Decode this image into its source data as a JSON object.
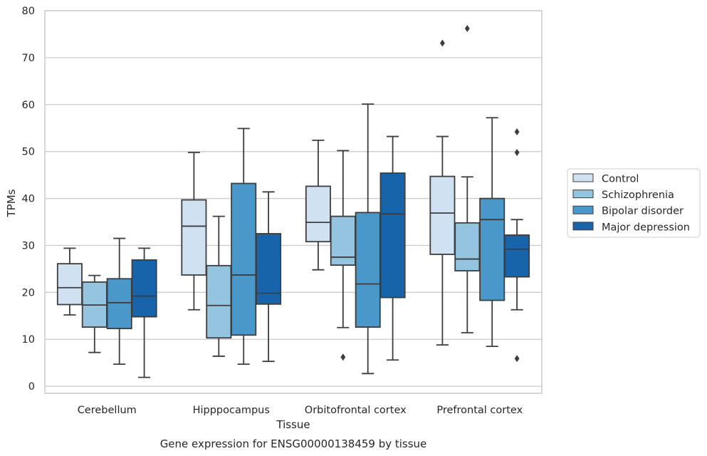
{
  "chart_data": {
    "type": "box",
    "xlabel": "Tissue",
    "ylabel": "TPMs",
    "caption": "Gene expression for ENSG00000138459 by tissue",
    "ylim": [
      -1.5,
      80
    ],
    "yticks": [
      0,
      10,
      20,
      30,
      40,
      50,
      60,
      70,
      80
    ],
    "grid": "horizontal",
    "legend_position": "right",
    "categories": [
      "Cerebellum",
      "Hipppocampus",
      "Orbitofrontal cortex",
      "Prefrontal cortex"
    ],
    "series": [
      {
        "name": "Control",
        "color": "#d0e1f2",
        "boxes": [
          {
            "whislo": 15.2,
            "q1": 17.4,
            "med": 21.0,
            "q3": 26.1,
            "whishi": 29.4,
            "fliers": []
          },
          {
            "whislo": 16.3,
            "q1": 23.7,
            "med": 34.1,
            "q3": 39.7,
            "whishi": 49.8,
            "fliers": []
          },
          {
            "whislo": 24.8,
            "q1": 30.8,
            "med": 34.9,
            "q3": 42.6,
            "whishi": 52.4,
            "fliers": []
          },
          {
            "whislo": 8.8,
            "q1": 28.1,
            "med": 36.9,
            "q3": 44.7,
            "whishi": 53.2,
            "fliers": [
              73.1
            ]
          }
        ]
      },
      {
        "name": "Schizophrenia",
        "color": "#94c4df",
        "boxes": [
          {
            "whislo": 7.2,
            "q1": 12.6,
            "med": 17.3,
            "q3": 22.2,
            "whishi": 23.6,
            "fliers": []
          },
          {
            "whislo": 6.4,
            "q1": 10.3,
            "med": 17.2,
            "q3": 25.7,
            "whishi": 36.2,
            "fliers": []
          },
          {
            "whislo": 12.5,
            "q1": 25.8,
            "med": 27.5,
            "q3": 36.2,
            "whishi": 50.2,
            "fliers": [
              6.2
            ]
          },
          {
            "whislo": 11.4,
            "q1": 24.6,
            "med": 27.1,
            "q3": 34.8,
            "whishi": 44.6,
            "fliers": [
              76.2
            ]
          }
        ]
      },
      {
        "name": "Bipolar disorder",
        "color": "#4a98c9",
        "boxes": [
          {
            "whislo": 4.7,
            "q1": 12.3,
            "med": 17.8,
            "q3": 22.9,
            "whishi": 31.5,
            "fliers": []
          },
          {
            "whislo": 4.7,
            "q1": 10.9,
            "med": 23.7,
            "q3": 43.2,
            "whishi": 54.9,
            "fliers": []
          },
          {
            "whislo": 2.7,
            "q1": 12.6,
            "med": 21.8,
            "q3": 37.0,
            "whishi": 60.1,
            "fliers": []
          },
          {
            "whislo": 8.5,
            "q1": 18.3,
            "med": 35.5,
            "q3": 40.0,
            "whishi": 57.2,
            "fliers": []
          }
        ]
      },
      {
        "name": "Major depression",
        "color": "#1764ab",
        "boxes": [
          {
            "whislo": 1.9,
            "q1": 14.8,
            "med": 19.2,
            "q3": 26.9,
            "whishi": 29.4,
            "fliers": []
          },
          {
            "whislo": 5.3,
            "q1": 17.5,
            "med": 19.8,
            "q3": 32.5,
            "whishi": 41.4,
            "fliers": []
          },
          {
            "whislo": 5.6,
            "q1": 18.9,
            "med": 36.7,
            "q3": 45.4,
            "whishi": 53.2,
            "fliers": []
          },
          {
            "whislo": 16.3,
            "q1": 23.3,
            "med": 29.2,
            "q3": 32.2,
            "whishi": 35.5,
            "fliers": [
              54.2,
              49.8,
              5.9
            ]
          }
        ]
      }
    ]
  }
}
